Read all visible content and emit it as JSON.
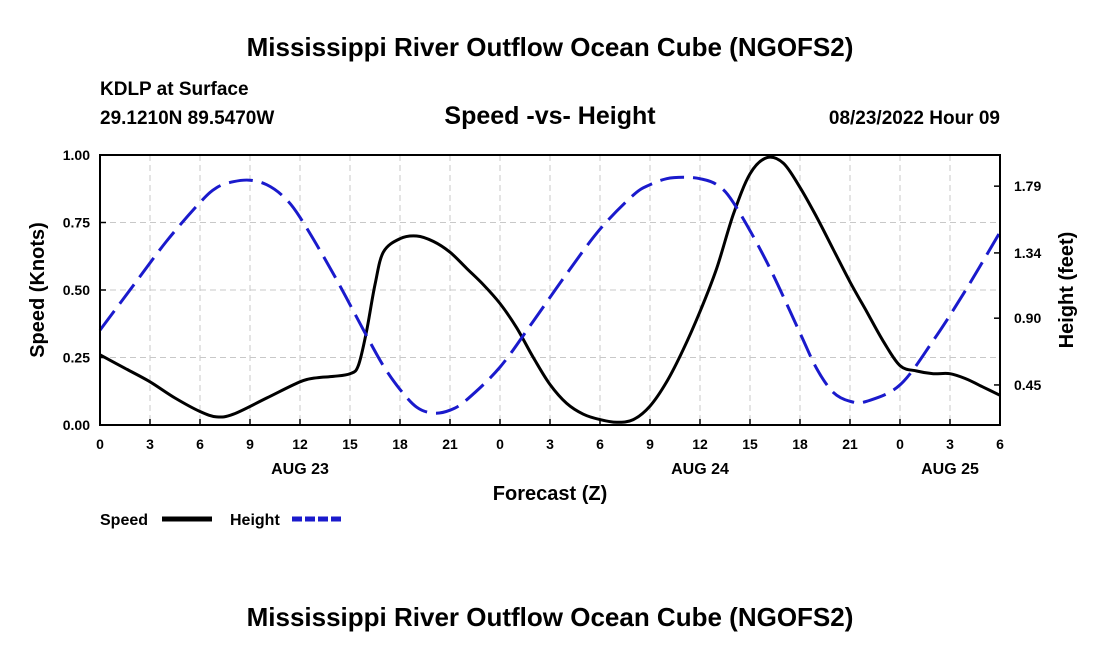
{
  "title": "Mississippi River Outflow Ocean Cube (NGOFS2)",
  "station": "KDLP at Surface",
  "coords": "29.1210N  89.5470W",
  "datetime": "08/23/2022 Hour 09",
  "footer_title": "Mississippi River Outflow Ocean Cube (NGOFS2)",
  "chart_data": {
    "type": "line",
    "title": "Speed -vs- Height",
    "xlabel": "Forecast (Z)",
    "ylabel": "Speed (Knots)",
    "y2label": "Height (feet)",
    "xlim": [
      0,
      54
    ],
    "ylim": [
      0,
      1
    ],
    "y2lim": [
      0.18,
      2.0
    ],
    "grid": true,
    "x_ticks": [
      0,
      3,
      6,
      9,
      12,
      15,
      18,
      21,
      24,
      27,
      30,
      33,
      36,
      39,
      42,
      45,
      48,
      51,
      54
    ],
    "x_tick_labels": [
      "0",
      "3",
      "6",
      "9",
      "12",
      "15",
      "18",
      "21",
      "0",
      "3",
      "6",
      "9",
      "12",
      "15",
      "18",
      "21",
      "0",
      "3",
      "6"
    ],
    "y_ticks": [
      0,
      0.25,
      0.5,
      0.75,
      1.0
    ],
    "y_tick_labels": [
      "0.00",
      "0.25",
      "0.50",
      "0.75",
      "1.00"
    ],
    "y2_ticks": [
      0.45,
      0.9,
      1.34,
      1.79
    ],
    "y2_tick_labels": [
      "0.45",
      "0.90",
      "1.34",
      "1.79"
    ],
    "day_labels": [
      {
        "x": 12,
        "label": "AUG 23"
      },
      {
        "x": 36,
        "label": "AUG 24"
      },
      {
        "x": 51,
        "label": "AUG 25"
      }
    ],
    "legend": {
      "speed_label": "Speed",
      "height_label": "Height"
    },
    "series": [
      {
        "name": "Speed",
        "axis": "left",
        "color": "#000000",
        "style": "solid",
        "x": [
          0,
          1.5,
          3,
          4.5,
          6,
          7,
          8,
          10,
          12,
          13,
          14,
          15,
          15.5,
          16,
          16.5,
          17,
          18,
          19,
          20,
          21,
          22,
          23,
          24,
          25,
          26,
          27,
          28,
          29,
          30,
          31,
          32,
          33,
          34,
          35,
          36,
          37,
          38,
          39,
          40,
          41,
          42,
          43,
          44,
          45,
          46,
          47,
          48,
          49,
          50,
          51,
          52,
          53,
          54
        ],
        "y": [
          0.26,
          0.21,
          0.16,
          0.1,
          0.05,
          0.03,
          0.04,
          0.1,
          0.16,
          0.175,
          0.18,
          0.19,
          0.22,
          0.35,
          0.52,
          0.64,
          0.69,
          0.7,
          0.68,
          0.64,
          0.58,
          0.52,
          0.45,
          0.36,
          0.25,
          0.15,
          0.08,
          0.04,
          0.02,
          0.01,
          0.02,
          0.07,
          0.16,
          0.28,
          0.42,
          0.58,
          0.78,
          0.93,
          0.99,
          0.97,
          0.88,
          0.77,
          0.65,
          0.53,
          0.42,
          0.31,
          0.22,
          0.2,
          0.19,
          0.19,
          0.17,
          0.14,
          0.11
        ]
      },
      {
        "name": "Height",
        "axis": "right",
        "color": "#1a1acc",
        "style": "dashed",
        "x": [
          0,
          2,
          4,
          6,
          7,
          8,
          9,
          10,
          11,
          12,
          14,
          16,
          17,
          18,
          19,
          20,
          21,
          22,
          24,
          26,
          28,
          30,
          32,
          33,
          34,
          35,
          36,
          37,
          38,
          40,
          42,
          43,
          44,
          45,
          46,
          48,
          50,
          52,
          54
        ],
        "y": [
          0.82,
          1.12,
          1.42,
          1.68,
          1.78,
          1.82,
          1.83,
          1.8,
          1.72,
          1.58,
          1.2,
          0.78,
          0.58,
          0.42,
          0.3,
          0.26,
          0.28,
          0.35,
          0.57,
          0.88,
          1.2,
          1.5,
          1.73,
          1.8,
          1.84,
          1.85,
          1.84,
          1.8,
          1.68,
          1.28,
          0.8,
          0.56,
          0.4,
          0.34,
          0.34,
          0.45,
          0.75,
          1.1,
          1.48
        ]
      }
    ]
  }
}
